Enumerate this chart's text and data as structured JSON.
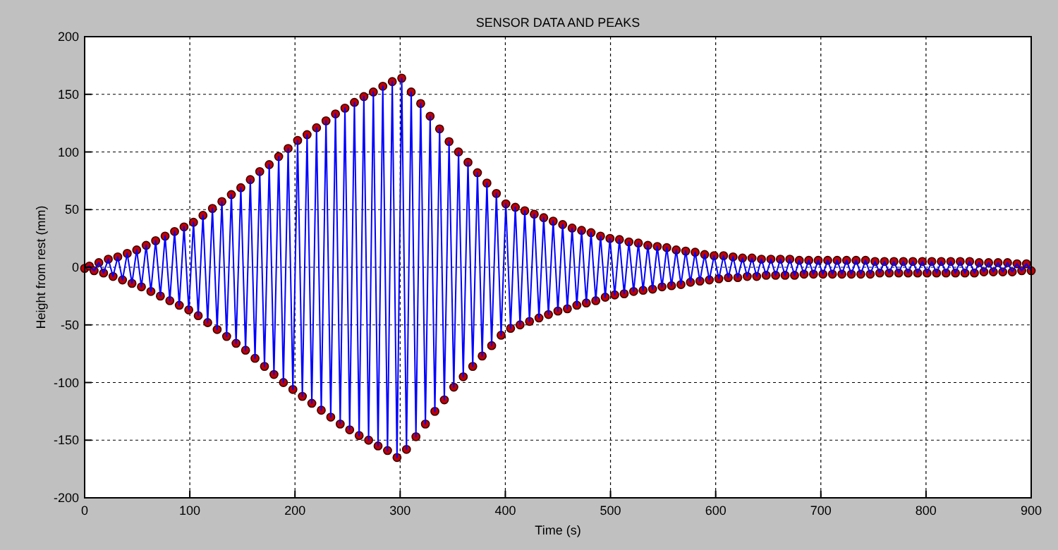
{
  "chart_data": {
    "type": "line",
    "title": "SENSOR DATA AND PEAKS",
    "xlabel": "Time (s)",
    "ylabel": "Height from rest (mm)",
    "xlim": [
      0,
      900
    ],
    "xticks": [
      0,
      100,
      200,
      300,
      400,
      500,
      600,
      700,
      800,
      900
    ],
    "ylim": [
      -200,
      200
    ],
    "yticks": [
      -200,
      -150,
      -100,
      -50,
      0,
      50,
      100,
      150,
      200
    ],
    "grid": true,
    "x": [
      0,
      4.5,
      9,
      13.5,
      18,
      22.5,
      27,
      31.5,
      36,
      40.5,
      45,
      49.5,
      54,
      58.5,
      63,
      67.5,
      72,
      76.5,
      81,
      85.5,
      90,
      94.5,
      99,
      103.5,
      108,
      112.5,
      117,
      121.5,
      126,
      130.5,
      135,
      139.5,
      144,
      148.5,
      153,
      157.5,
      162,
      166.5,
      171,
      175.5,
      180,
      184.5,
      189,
      193.5,
      198,
      202.5,
      207,
      211.5,
      216,
      220.5,
      225,
      229.5,
      234,
      238.5,
      243,
      247.5,
      252,
      256.5,
      261,
      265.5,
      270,
      274.5,
      279,
      283.5,
      288,
      292.5,
      297,
      301.5,
      306,
      310.5,
      315,
      319.5,
      324,
      328.5,
      333,
      337.5,
      342,
      346.5,
      351,
      355.5,
      360,
      364.5,
      369,
      373.5,
      378,
      382.5,
      387,
      391.5,
      396,
      400.5,
      405,
      409.5,
      414,
      418.5,
      423,
      427.5,
      432,
      436.5,
      441,
      445.5,
      450,
      454.5,
      459,
      463.5,
      468,
      472.5,
      477,
      481.5,
      486,
      490.5,
      495,
      499.5,
      504,
      508.5,
      513,
      517.5,
      522,
      526.5,
      531,
      535.5,
      540,
      544.5,
      549,
      553.5,
      558,
      562.5,
      567,
      571.5,
      576,
      580.5,
      585,
      589.5,
      594,
      598.5,
      603,
      607.5,
      612,
      616.5,
      621,
      625.5,
      630,
      634.5,
      639,
      643.5,
      648,
      652.5,
      657,
      661.5,
      666,
      670.5,
      675,
      679.5,
      684,
      688.5,
      693,
      697.5,
      702,
      706.5,
      711,
      715.5,
      720,
      724.5,
      729,
      733.5,
      738,
      742.5,
      747,
      751.5,
      756,
      760.5,
      765,
      769.5,
      774,
      778.5,
      783,
      787.5,
      792,
      796.5,
      801,
      805.5,
      810,
      814.5,
      819,
      823.5,
      828,
      832.5,
      837,
      841.5,
      846,
      850.5,
      855,
      859.5,
      864,
      868.5,
      873,
      877.5,
      882,
      886.5,
      891,
      895.5,
      900
    ],
    "series": [
      {
        "color": "#0000ff",
        "line_style": "solid",
        "marker": "none",
        "values": [
          -1,
          1,
          -3,
          4,
          -5,
          7,
          -8,
          9,
          -11,
          12,
          -14,
          15,
          -17,
          19,
          -21,
          23,
          -25,
          27,
          -29,
          31,
          -33,
          35,
          -37,
          39,
          -42,
          45,
          -48,
          51,
          -54,
          57,
          -60,
          63,
          -66,
          69,
          -72,
          76,
          -79,
          83,
          -86,
          89,
          -93,
          96,
          -100,
          103,
          -106,
          110,
          -112,
          115,
          -118,
          121,
          -124,
          127,
          -130,
          133,
          -136,
          138,
          -141,
          143,
          -146,
          148,
          -150,
          152,
          -155,
          157,
          -159,
          161,
          -165,
          164,
          -158,
          152,
          -147,
          142,
          -136,
          131,
          -125,
          120,
          -115,
          109,
          -104,
          100,
          -95,
          91,
          -86,
          82,
          -77,
          73,
          -68,
          64,
          -59,
          55,
          -53,
          52,
          -50,
          49,
          -47,
          46,
          -44,
          43,
          -41,
          40,
          -38,
          37,
          -36,
          34,
          -33,
          32,
          -31,
          30,
          -29,
          27,
          -26,
          25,
          -24,
          24,
          -23,
          22,
          -21,
          21,
          -20,
          19,
          -19,
          18,
          -17,
          17,
          -16,
          15,
          -15,
          14,
          -13,
          13,
          -12,
          11,
          -11,
          10,
          -10,
          10,
          -9,
          9,
          -9,
          8,
          -8,
          8,
          -8,
          7,
          -7,
          7,
          -7,
          7,
          -7,
          7,
          -7,
          6,
          -6,
          6,
          -6,
          6,
          -6,
          6,
          -6,
          6,
          -6,
          6,
          -6,
          6,
          -6,
          6,
          -6,
          5,
          -5,
          5,
          -5,
          5,
          -5,
          5,
          -5,
          5,
          -5,
          5,
          -5,
          5,
          -5,
          5,
          -5,
          5,
          -5,
          5,
          -5,
          5,
          -5,
          4,
          -4,
          4,
          -4,
          4,
          -4,
          4,
          -4,
          3,
          -3,
          3,
          -3
        ]
      },
      {
        "type": "scatter",
        "color": "#c00000",
        "marker": "circle",
        "values": [
          -1,
          1,
          -3,
          4,
          -5,
          7,
          -8,
          9,
          -11,
          12,
          -14,
          15,
          -17,
          19,
          -21,
          23,
          -25,
          27,
          -29,
          31,
          -33,
          35,
          -37,
          39,
          -42,
          45,
          -48,
          51,
          -54,
          57,
          -60,
          63,
          -66,
          69,
          -72,
          76,
          -79,
          83,
          -86,
          89,
          -93,
          96,
          -100,
          103,
          -106,
          110,
          -112,
          115,
          -118,
          121,
          -124,
          127,
          -130,
          133,
          -136,
          138,
          -141,
          143,
          -146,
          148,
          -150,
          152,
          -155,
          157,
          -159,
          161,
          -165,
          164,
          -158,
          152,
          -147,
          142,
          -136,
          131,
          -125,
          120,
          -115,
          109,
          -104,
          100,
          -95,
          91,
          -86,
          82,
          -77,
          73,
          -68,
          64,
          -59,
          55,
          -53,
          52,
          -50,
          49,
          -47,
          46,
          -44,
          43,
          -41,
          40,
          -38,
          37,
          -36,
          34,
          -33,
          32,
          -31,
          30,
          -29,
          27,
          -26,
          25,
          -24,
          24,
          -23,
          22,
          -21,
          21,
          -20,
          19,
          -19,
          18,
          -17,
          17,
          -16,
          15,
          -15,
          14,
          -13,
          13,
          -12,
          11,
          -11,
          10,
          -10,
          10,
          -9,
          9,
          -9,
          8,
          -8,
          8,
          -8,
          7,
          -7,
          7,
          -7,
          7,
          -7,
          7,
          -7,
          6,
          -6,
          6,
          -6,
          6,
          -6,
          6,
          -6,
          6,
          -6,
          6,
          -6,
          6,
          -6,
          6,
          -6,
          5,
          -5,
          5,
          -5,
          5,
          -5,
          5,
          -5,
          5,
          -5,
          5,
          -5,
          5,
          -5,
          5,
          -5,
          5,
          -5,
          5,
          -5,
          5,
          -5,
          4,
          -4,
          4,
          -4,
          4,
          -4,
          4,
          -4,
          3,
          -3,
          3,
          -3
        ]
      }
    ]
  }
}
